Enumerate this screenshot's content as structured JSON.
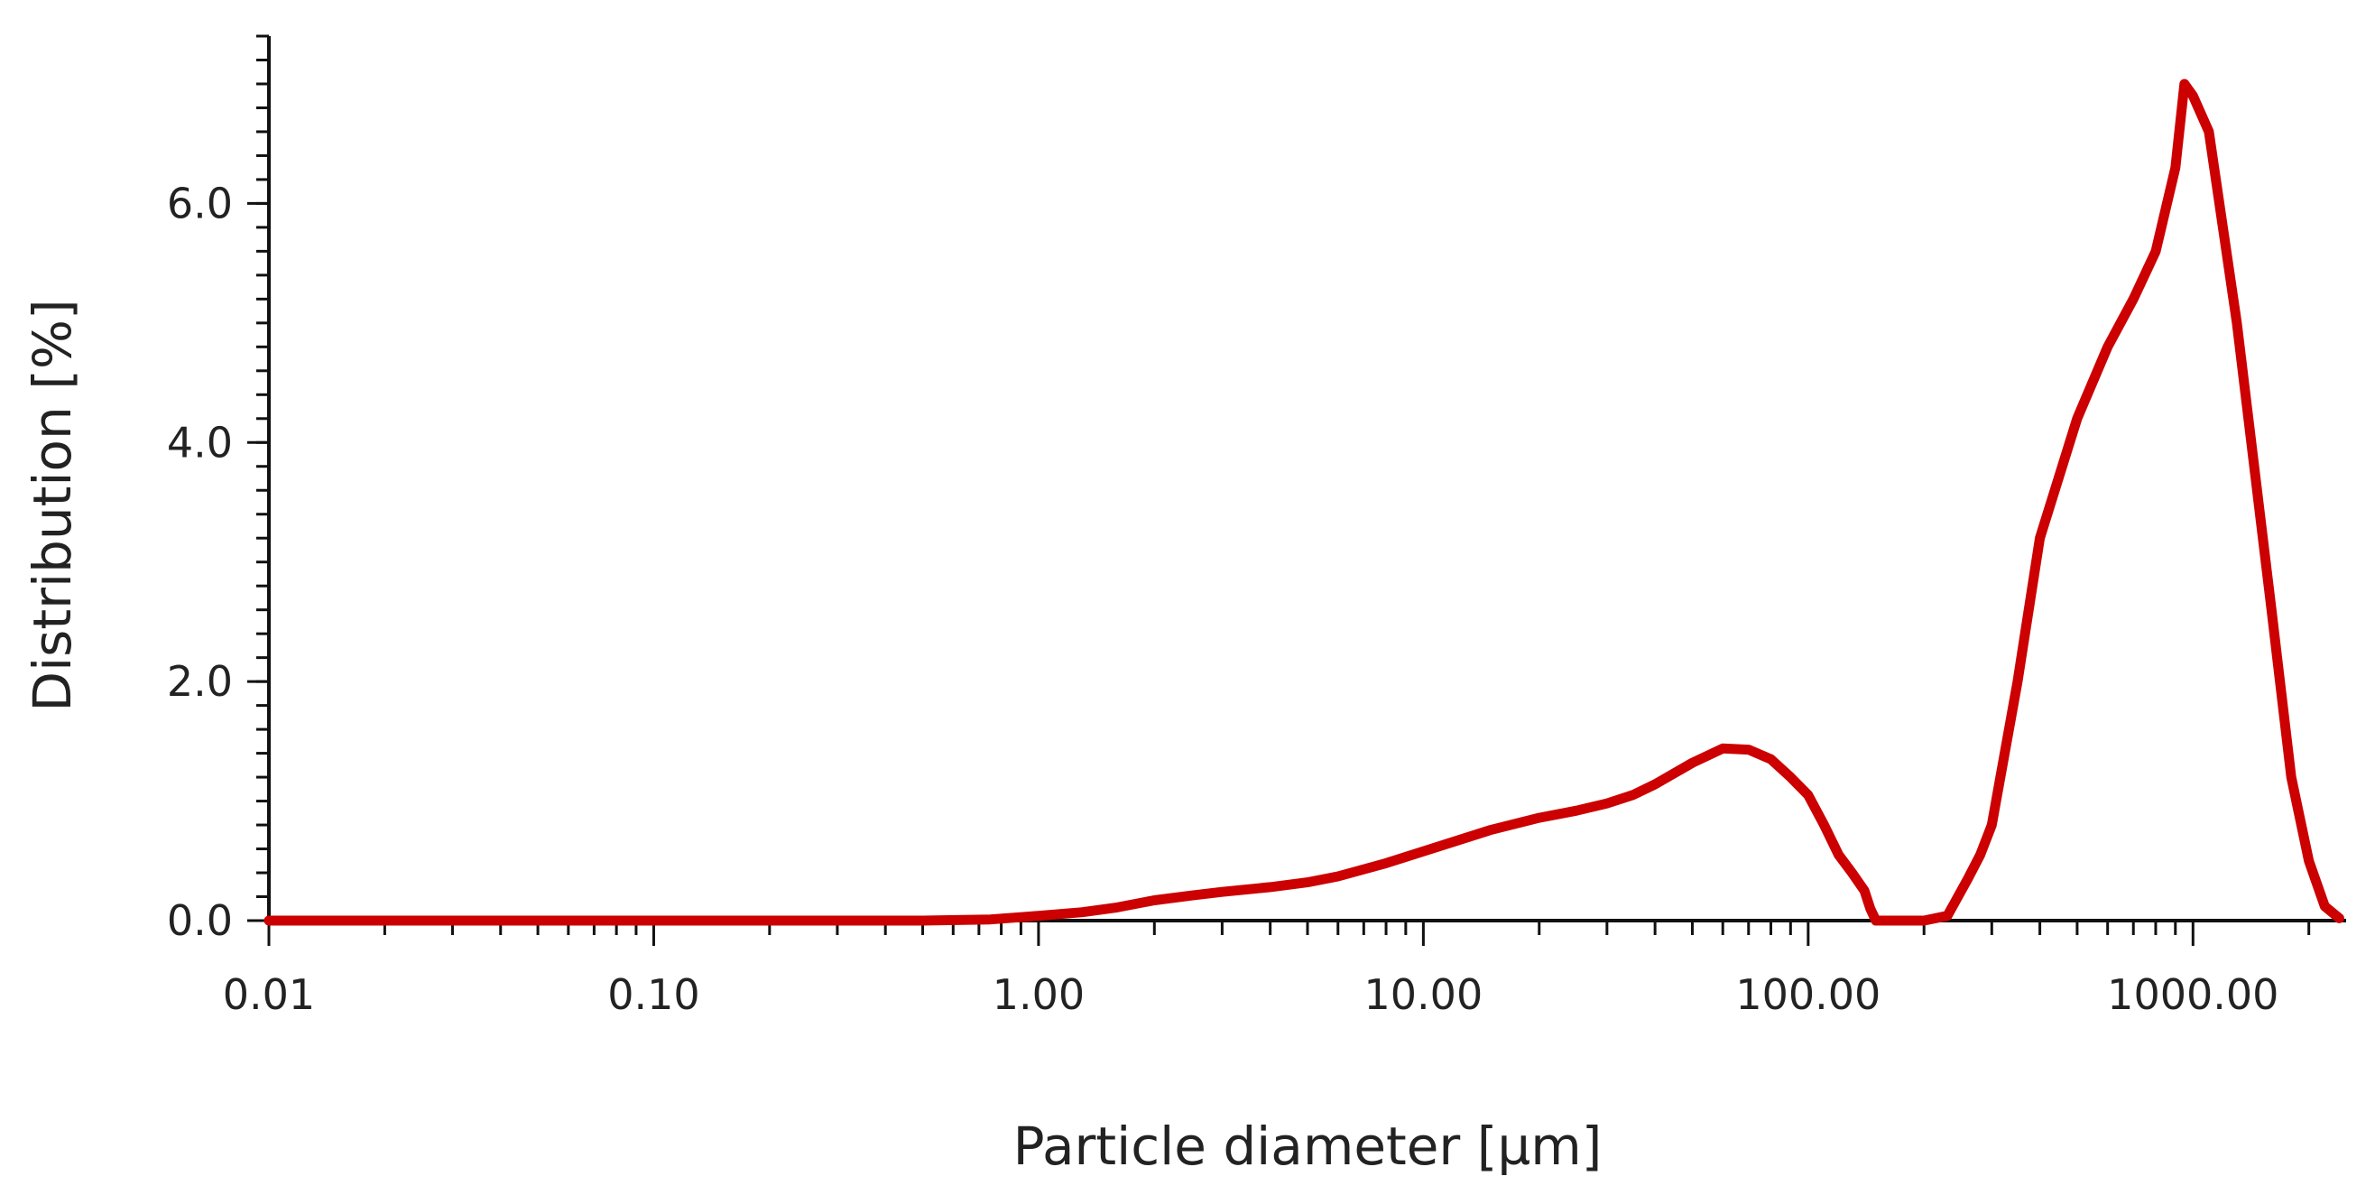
{
  "chart_data": {
    "type": "line",
    "xlabel": "Particle diameter [µm]",
    "ylabel": "Distribution [%]",
    "x_scale": "log",
    "xlim": [
      0.01,
      2500
    ],
    "ylim": [
      0,
      7.4
    ],
    "x_ticks": [
      {
        "value": 0.01,
        "label": "0.01"
      },
      {
        "value": 0.1,
        "label": "0.10"
      },
      {
        "value": 1,
        "label": "1.00"
      },
      {
        "value": 10,
        "label": "10.00"
      },
      {
        "value": 100,
        "label": "100.00"
      },
      {
        "value": 1000,
        "label": "1000.00"
      }
    ],
    "y_ticks": [
      {
        "value": 0,
        "label": "0.0"
      },
      {
        "value": 2,
        "label": "2.0"
      },
      {
        "value": 4,
        "label": "4.0"
      },
      {
        "value": 6,
        "label": "6.0"
      }
    ],
    "y_minor_step": 0.2,
    "grid": false,
    "series": [
      {
        "color": "#cc0000",
        "x": [
          0.01,
          0.1,
          0.5,
          0.75,
          1.0,
          1.3,
          1.6,
          2.0,
          2.5,
          3.0,
          4.0,
          5.0,
          6.0,
          8.0,
          10.0,
          15.0,
          20.0,
          25.0,
          30.0,
          35.0,
          40.0,
          50.0,
          60.0,
          70.0,
          80.0,
          90.0,
          100.0,
          110.0,
          120.0,
          130.0,
          140.0,
          145.0,
          150.0,
          200.0,
          230.0,
          260.0,
          280.0,
          300.0,
          350.0,
          400.0,
          500.0,
          600.0,
          700.0,
          800.0,
          900.0,
          950.0,
          1000.0,
          1100.0,
          1300.0,
          1600.0,
          1800.0,
          2000.0,
          2200.0,
          2400.0
        ],
        "y": [
          0,
          0,
          0,
          0.01,
          0.04,
          0.07,
          0.11,
          0.17,
          0.21,
          0.24,
          0.28,
          0.32,
          0.37,
          0.48,
          0.58,
          0.76,
          0.86,
          0.92,
          0.98,
          1.05,
          1.14,
          1.32,
          1.44,
          1.43,
          1.35,
          1.2,
          1.05,
          0.8,
          0.55,
          0.4,
          0.25,
          0.1,
          0.0,
          0.0,
          0.04,
          0.35,
          0.55,
          0.8,
          2.0,
          3.2,
          4.2,
          4.8,
          5.2,
          5.6,
          6.3,
          7.0,
          6.9,
          6.6,
          5.0,
          2.6,
          1.2,
          0.5,
          0.12,
          0.02
        ]
      }
    ]
  }
}
